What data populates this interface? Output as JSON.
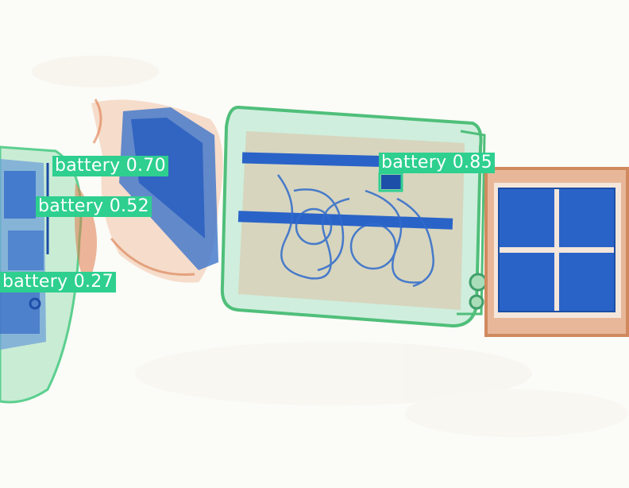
{
  "image": {
    "description_kind": "xray-baggage-scan-with-detections",
    "colors": {
      "background": "#fbfbf7",
      "organic": "#e07a4a",
      "mixed": "#3fbf7a",
      "metal": "#2a63c8",
      "label_bg": "#2ecf8f"
    }
  },
  "detections": [
    {
      "label": "battery",
      "score_text": "battery 0.70"
    },
    {
      "label": "battery",
      "score_text": "battery 0.52"
    },
    {
      "label": "battery",
      "score_text": "battery 0.27"
    },
    {
      "label": "battery",
      "score_text": "battery 0.85"
    }
  ]
}
